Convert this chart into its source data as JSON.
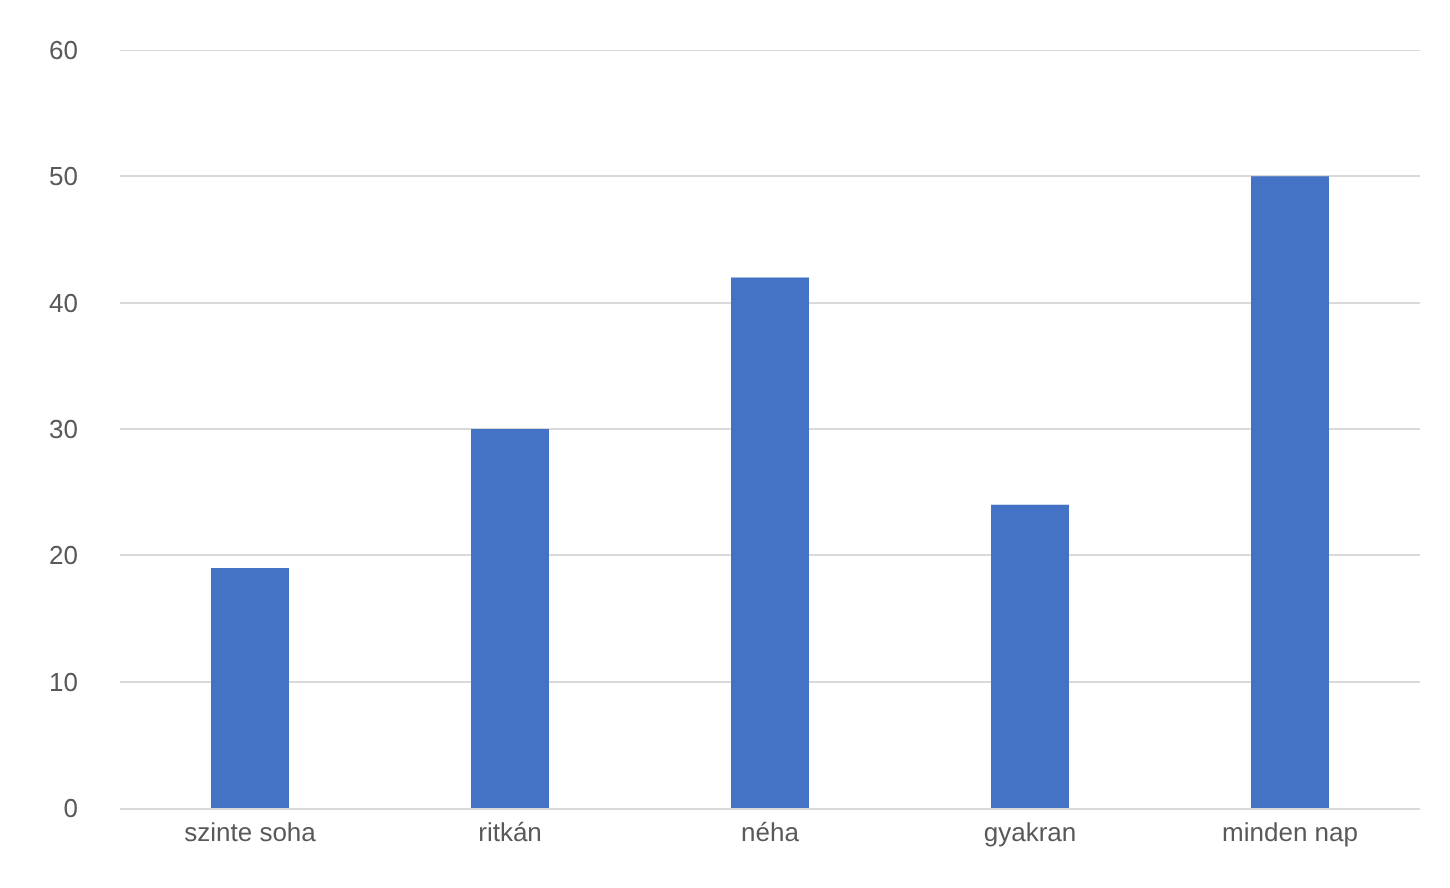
{
  "chart_data": {
    "type": "bar",
    "categories": [
      "szinte soha",
      "ritkán",
      "néha",
      "gyakran",
      "minden nap"
    ],
    "values": [
      19,
      30,
      42,
      24,
      50
    ],
    "color": "#4472c4",
    "ylim": [
      0,
      60
    ],
    "yticks": [
      0,
      10,
      20,
      30,
      40,
      50,
      60
    ],
    "grid": "y"
  }
}
